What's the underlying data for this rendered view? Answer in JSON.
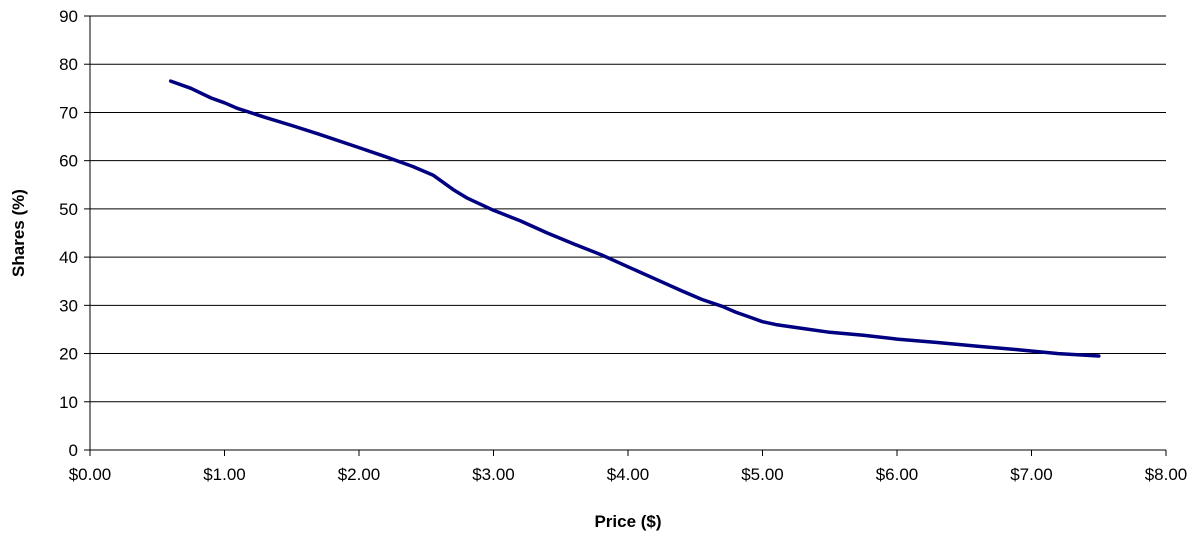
{
  "chart_data": {
    "type": "line",
    "title": "",
    "xlabel": "Price ($)",
    "ylabel": "Shares (%)",
    "xlim": [
      0,
      8
    ],
    "ylim": [
      0,
      90
    ],
    "x_ticks": [
      0,
      1,
      2,
      3,
      4,
      5,
      6,
      7,
      8
    ],
    "x_tick_labels": [
      "$0.00",
      "$1.00",
      "$2.00",
      "$3.00",
      "$4.00",
      "$5.00",
      "$6.00",
      "$7.00",
      "$8.00"
    ],
    "y_ticks": [
      0,
      10,
      20,
      30,
      40,
      50,
      60,
      70,
      80,
      90
    ],
    "y_tick_labels": [
      "0",
      "10",
      "20",
      "30",
      "40",
      "50",
      "60",
      "70",
      "80",
      "90"
    ],
    "grid": "horizontal",
    "legend": "none",
    "series": [
      {
        "color": "#000080",
        "x": [
          0.6,
          0.75,
          0.9,
          1.0,
          1.1,
          1.3,
          1.5,
          1.7,
          2.0,
          2.2,
          2.4,
          2.55,
          2.7,
          2.8,
          3.0,
          3.2,
          3.4,
          3.6,
          3.8,
          4.0,
          4.2,
          4.4,
          4.55,
          4.7,
          4.8,
          4.9,
          5.0,
          5.1,
          5.3,
          5.5,
          5.75,
          6.0,
          6.3,
          6.6,
          6.9,
          7.2,
          7.5
        ],
        "y": [
          76.5,
          75,
          73,
          72,
          70.8,
          69,
          67.3,
          65.5,
          62.7,
          60.8,
          58.8,
          57,
          54,
          52.3,
          49.7,
          47.5,
          45,
          42.7,
          40.5,
          38,
          35.5,
          33,
          31.2,
          29.8,
          28.6,
          27.6,
          26.6,
          26,
          25.2,
          24.4,
          23.8,
          23,
          22.3,
          21.5,
          20.8,
          20,
          19.5
        ]
      }
    ]
  }
}
